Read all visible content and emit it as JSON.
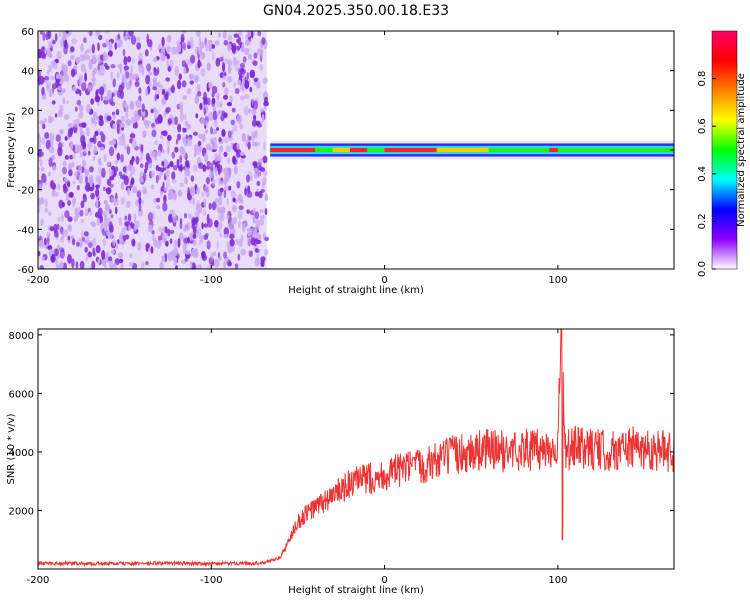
{
  "chart_data": [
    {
      "type": "heatmap",
      "title": "GN04.2025.350.00.18.E33",
      "xlabel": "Height of straight line (km)",
      "ylabel": "Frequency (Hz)",
      "xlim": [
        -200,
        167
      ],
      "ylim": [
        -60,
        60
      ],
      "x_ticks": [
        "-200",
        "-100",
        "0",
        "100"
      ],
      "x_tick_values": [
        -200,
        -100,
        0,
        100
      ],
      "y_ticks": [
        "-60",
        "-40",
        "-20",
        "0",
        "20",
        "40",
        "60"
      ],
      "y_tick_values": [
        -60,
        -40,
        -20,
        0,
        20,
        40,
        60
      ],
      "noise_region_x": [
        -200,
        -68
      ],
      "signal_band": {
        "x_start": -66,
        "x_end": 167,
        "center_freq_hz": 0,
        "half_width_hz": 3
      },
      "colorbar": {
        "label": "Normalized spectral amplitude",
        "range": [
          0.0,
          1.0
        ],
        "ticks": [
          "0.0",
          "0.2",
          "0.4",
          "0.6",
          "0.8"
        ],
        "tick_values": [
          0.0,
          0.2,
          0.4,
          0.6,
          0.8
        ],
        "colors": [
          "#ffffff",
          "#8b00ff",
          "#0000ff",
          "#00ffff",
          "#00ff00",
          "#ffff00",
          "#ff8000",
          "#ff0000",
          "#ff0066"
        ]
      },
      "colors": {
        "noise_dark": "#7b2bd6",
        "noise_light": "#c9a8f0"
      }
    },
    {
      "type": "line",
      "title": "",
      "xlabel": "Height of straight line (km)",
      "ylabel": "SNR (10 * v/v)",
      "xlim": [
        -200,
        167
      ],
      "ylim": [
        0,
        8200
      ],
      "x_ticks": [
        "-200",
        "-100",
        "0",
        "100"
      ],
      "x_tick_values": [
        -200,
        -100,
        0,
        100
      ],
      "y_ticks": [
        "2000",
        "4000",
        "6000",
        "8000"
      ],
      "y_tick_values": [
        2000,
        4000,
        6000,
        8000
      ],
      "color": "#ee3333",
      "x": [
        -200,
        -180,
        -160,
        -140,
        -120,
        -100,
        -80,
        -70,
        -60,
        -55,
        -50,
        -45,
        -40,
        -35,
        -30,
        -25,
        -20,
        -15,
        -10,
        -5,
        0,
        10,
        20,
        30,
        40,
        50,
        60,
        70,
        80,
        90,
        100,
        102,
        104,
        110,
        120,
        130,
        140,
        150,
        160,
        167
      ],
      "values": [
        200,
        190,
        180,
        190,
        200,
        180,
        200,
        200,
        400,
        1000,
        1600,
        1900,
        2100,
        2300,
        2500,
        2700,
        2900,
        3000,
        3100,
        3150,
        3200,
        3400,
        3500,
        3700,
        3900,
        4000,
        4100,
        4000,
        4100,
        4050,
        4200,
        8200,
        4000,
        4150,
        4100,
        4000,
        4150,
        4100,
        4050,
        4000
      ]
    }
  ]
}
